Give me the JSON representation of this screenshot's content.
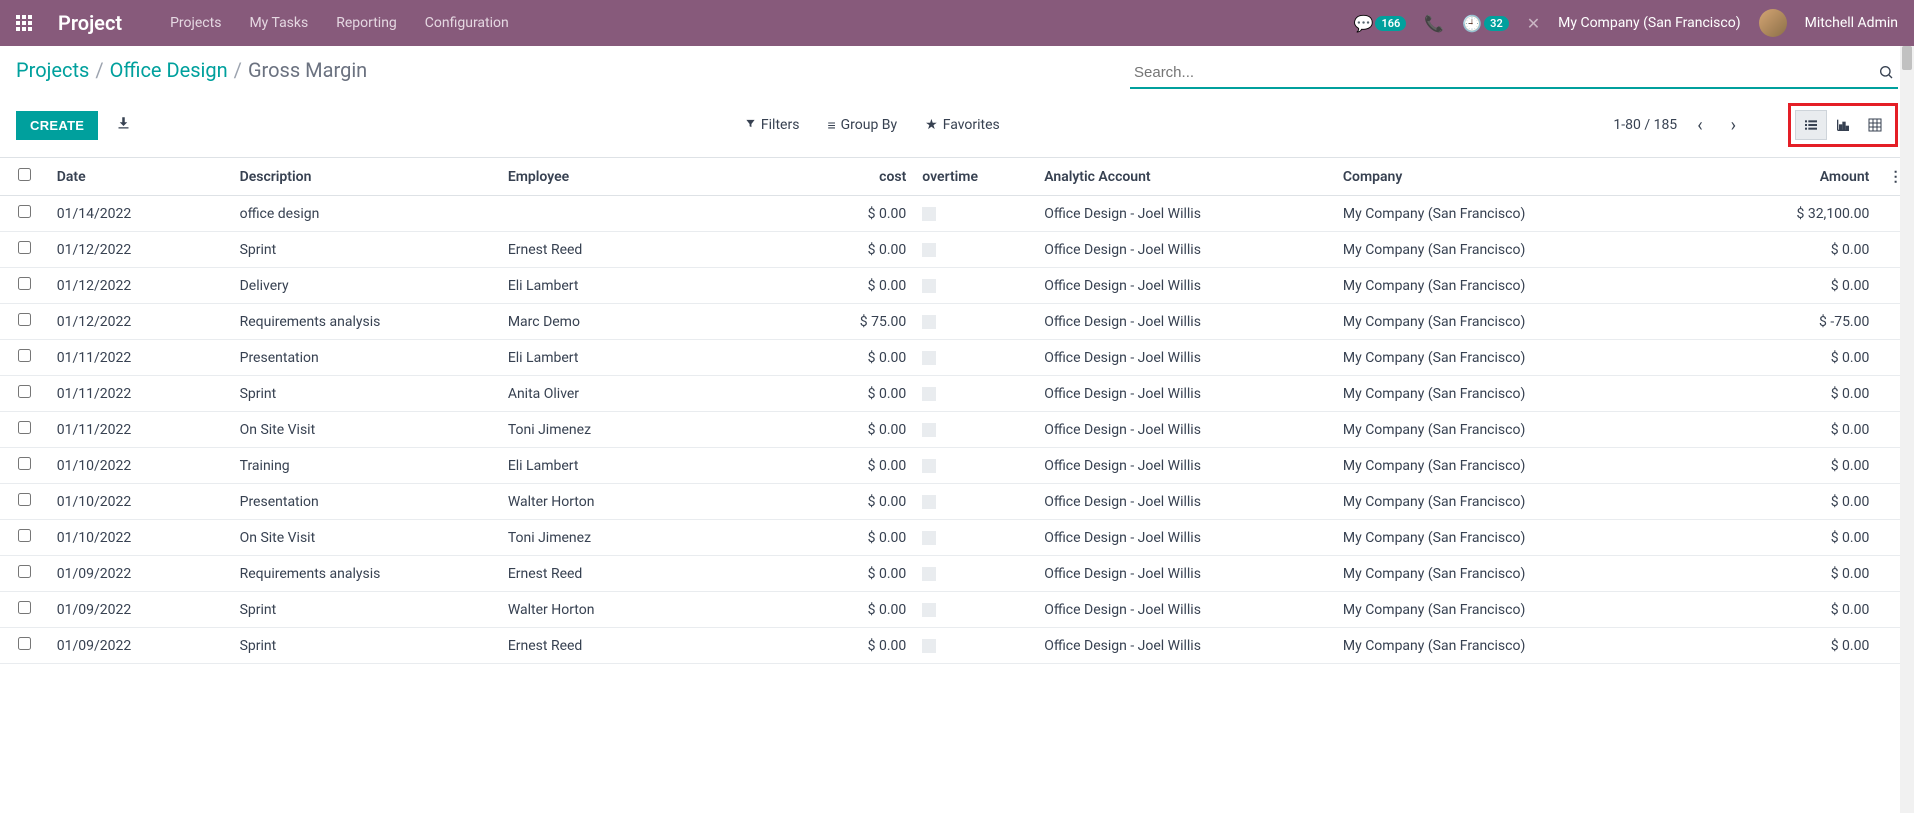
{
  "topnav": {
    "brand": "Project",
    "menu": [
      "Projects",
      "My Tasks",
      "Reporting",
      "Configuration"
    ],
    "messages_badge": "166",
    "activities_badge": "32",
    "company": "My Company (San Francisco)",
    "user": "Mitchell Admin"
  },
  "breadcrumb": {
    "items": [
      "Projects",
      "Office Design",
      "Gross Margin"
    ]
  },
  "search": {
    "placeholder": "Search..."
  },
  "buttons": {
    "create": "CREATE"
  },
  "filters": {
    "filters": "Filters",
    "groupby": "Group By",
    "favorites": "Favorites"
  },
  "pager": {
    "range": "1-80 / 185"
  },
  "columns": {
    "date": "Date",
    "description": "Description",
    "employee": "Employee",
    "cost": "cost",
    "overtime": "overtime",
    "account": "Analytic Account",
    "company": "Company",
    "amount": "Amount"
  },
  "rows": [
    {
      "date": "01/14/2022",
      "desc": "office design",
      "emp": "",
      "cost": "$ 0.00",
      "acct": "Office Design - Joel Willis",
      "comp": "My Company (San Francisco)",
      "amt": "$ 32,100.00"
    },
    {
      "date": "01/12/2022",
      "desc": "Sprint",
      "emp": "Ernest Reed",
      "cost": "$ 0.00",
      "acct": "Office Design - Joel Willis",
      "comp": "My Company (San Francisco)",
      "amt": "$ 0.00"
    },
    {
      "date": "01/12/2022",
      "desc": "Delivery",
      "emp": "Eli Lambert",
      "cost": "$ 0.00",
      "acct": "Office Design - Joel Willis",
      "comp": "My Company (San Francisco)",
      "amt": "$ 0.00"
    },
    {
      "date": "01/12/2022",
      "desc": "Requirements analysis",
      "emp": "Marc Demo",
      "cost": "$ 75.00",
      "acct": "Office Design - Joel Willis",
      "comp": "My Company (San Francisco)",
      "amt": "$ -75.00"
    },
    {
      "date": "01/11/2022",
      "desc": "Presentation",
      "emp": "Eli Lambert",
      "cost": "$ 0.00",
      "acct": "Office Design - Joel Willis",
      "comp": "My Company (San Francisco)",
      "amt": "$ 0.00"
    },
    {
      "date": "01/11/2022",
      "desc": "Sprint",
      "emp": "Anita Oliver",
      "cost": "$ 0.00",
      "acct": "Office Design - Joel Willis",
      "comp": "My Company (San Francisco)",
      "amt": "$ 0.00"
    },
    {
      "date": "01/11/2022",
      "desc": "On Site Visit",
      "emp": "Toni Jimenez",
      "cost": "$ 0.00",
      "acct": "Office Design - Joel Willis",
      "comp": "My Company (San Francisco)",
      "amt": "$ 0.00"
    },
    {
      "date": "01/10/2022",
      "desc": "Training",
      "emp": "Eli Lambert",
      "cost": "$ 0.00",
      "acct": "Office Design - Joel Willis",
      "comp": "My Company (San Francisco)",
      "amt": "$ 0.00"
    },
    {
      "date": "01/10/2022",
      "desc": "Presentation",
      "emp": "Walter Horton",
      "cost": "$ 0.00",
      "acct": "Office Design - Joel Willis",
      "comp": "My Company (San Francisco)",
      "amt": "$ 0.00"
    },
    {
      "date": "01/10/2022",
      "desc": "On Site Visit",
      "emp": "Toni Jimenez",
      "cost": "$ 0.00",
      "acct": "Office Design - Joel Willis",
      "comp": "My Company (San Francisco)",
      "amt": "$ 0.00"
    },
    {
      "date": "01/09/2022",
      "desc": "Requirements analysis",
      "emp": "Ernest Reed",
      "cost": "$ 0.00",
      "acct": "Office Design - Joel Willis",
      "comp": "My Company (San Francisco)",
      "amt": "$ 0.00"
    },
    {
      "date": "01/09/2022",
      "desc": "Sprint",
      "emp": "Walter Horton",
      "cost": "$ 0.00",
      "acct": "Office Design - Joel Willis",
      "comp": "My Company (San Francisco)",
      "amt": "$ 0.00"
    },
    {
      "date": "01/09/2022",
      "desc": "Sprint",
      "emp": "Ernest Reed",
      "cost": "$ 0.00",
      "acct": "Office Design - Joel Willis",
      "comp": "My Company (San Francisco)",
      "amt": "$ 0.00"
    }
  ],
  "colors": {
    "topnav_bg": "#875a7b",
    "accent": "#00a09d",
    "highlight_border": "#e41e26"
  }
}
